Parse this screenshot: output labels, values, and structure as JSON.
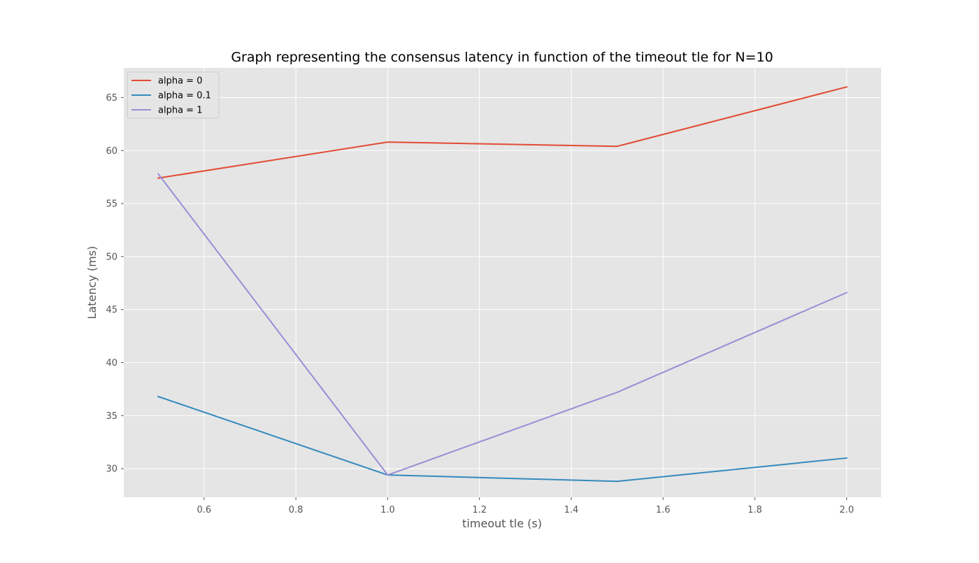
{
  "chart_data": {
    "type": "line",
    "title": "Graph representing the consensus latency in function of the timeout tle for N=10",
    "xlabel": "timeout tle (s)",
    "ylabel": "Latency (ms)",
    "x": [
      0.5,
      1.0,
      1.5,
      2.0
    ],
    "xlim": [
      0.425,
      2.075
    ],
    "ylim": [
      27.3,
      67.8
    ],
    "xticks": [
      0.6,
      0.8,
      1.0,
      1.2,
      1.4,
      1.6,
      1.8,
      2.0
    ],
    "xtick_labels": [
      "0.6",
      "0.8",
      "1.0",
      "1.2",
      "1.4",
      "1.6",
      "1.8",
      "2.0"
    ],
    "yticks": [
      30,
      35,
      40,
      45,
      50,
      55,
      60,
      65
    ],
    "ytick_labels": [
      "30",
      "35",
      "40",
      "45",
      "50",
      "55",
      "60",
      "65"
    ],
    "grid": true,
    "legend_position": "top-left",
    "background_color": "#e5e5e5",
    "grid_color": "#ffffff",
    "series": [
      {
        "name": "alpha = 0",
        "color": "#e24a33",
        "values": [
          57.4,
          60.8,
          60.4,
          66.0
        ]
      },
      {
        "name": "alpha = 0.1",
        "color": "#348abd",
        "values": [
          36.8,
          29.4,
          28.8,
          31.0
        ]
      },
      {
        "name": "alpha = 1",
        "color": "#988ed5",
        "values": [
          57.8,
          29.4,
          37.2,
          46.6
        ]
      }
    ]
  }
}
